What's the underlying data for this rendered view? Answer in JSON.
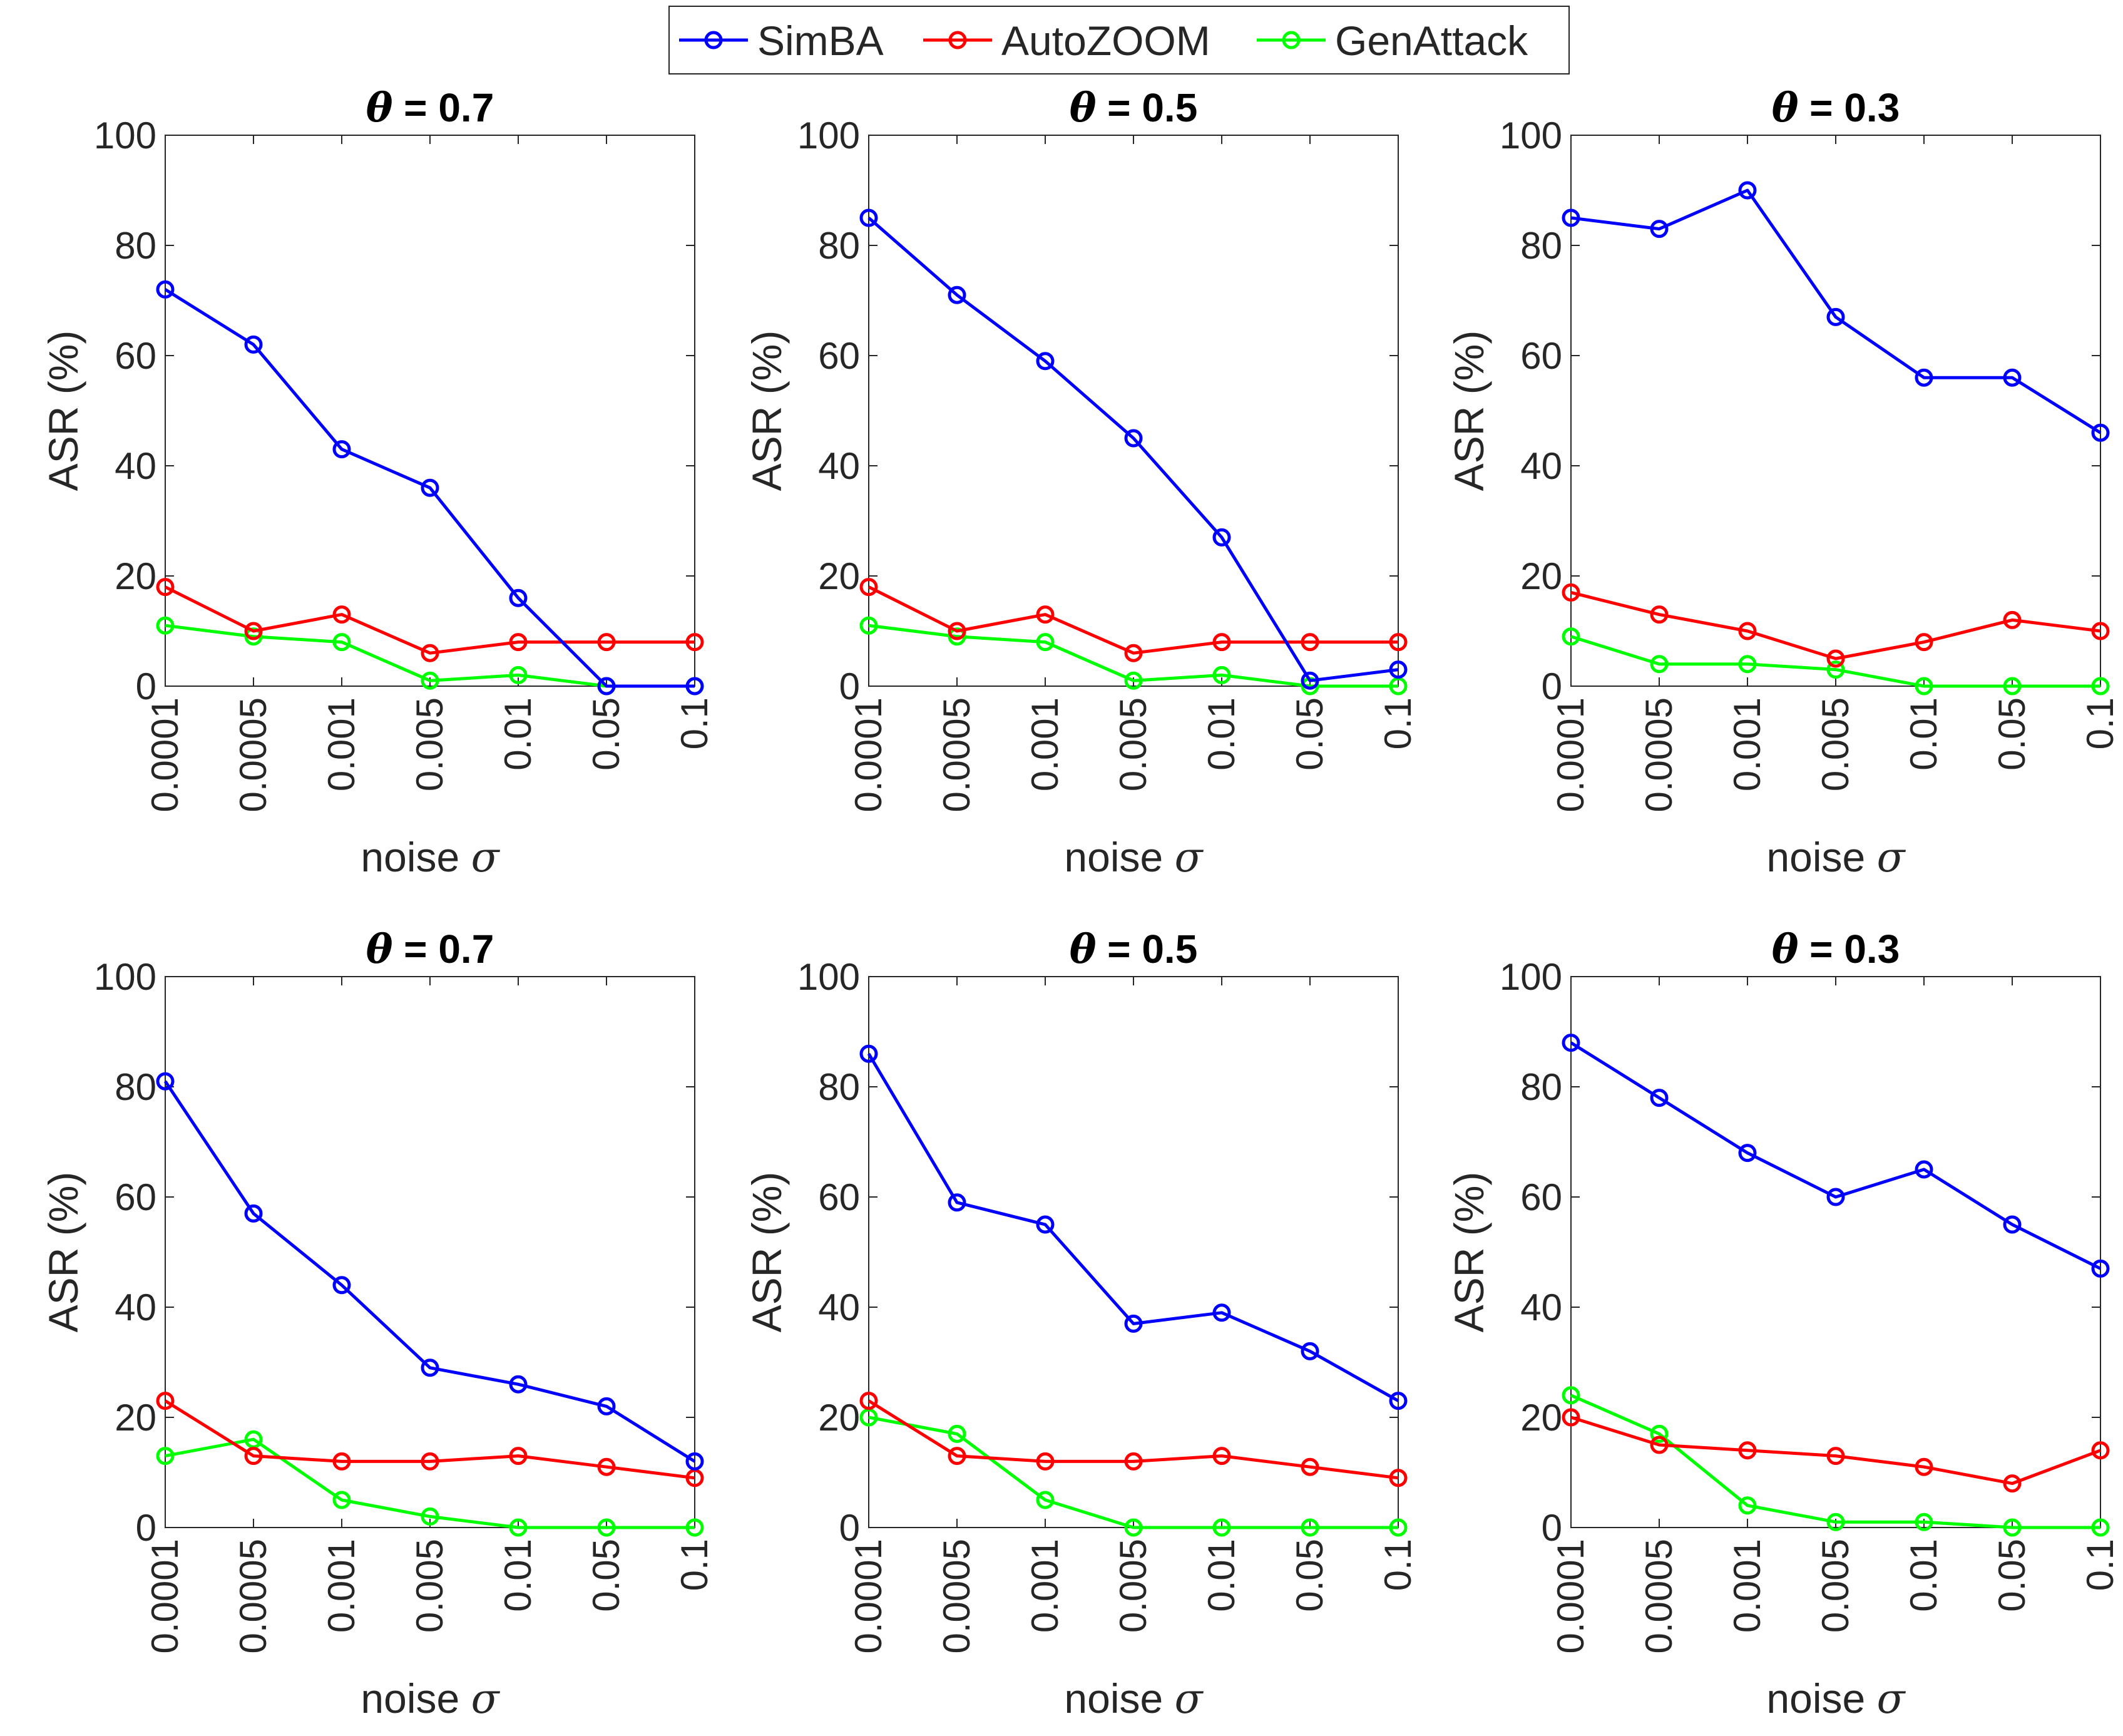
{
  "legend": {
    "entries": [
      {
        "label": "SimBA",
        "color": "#0000ff"
      },
      {
        "label": "AutoZOOM",
        "color": "#ff0000"
      },
      {
        "label": "GenAttack",
        "color": "#00ff00"
      }
    ]
  },
  "chart_data": [
    {
      "type": "line",
      "title": "θ = 0.7",
      "xlabel": "noise σ",
      "ylabel": "ASR (%)",
      "categories": [
        "0.0001",
        "0.0005",
        "0.001",
        "0.005",
        "0.01",
        "0.05",
        "0.1"
      ],
      "ylim": [
        0,
        100
      ],
      "yticks": [
        "0",
        "20",
        "40",
        "60",
        "80",
        "100"
      ],
      "series": [
        {
          "name": "SimBA",
          "color": "#0000ff",
          "values": [
            72,
            62,
            43,
            36,
            16,
            0,
            0
          ]
        },
        {
          "name": "AutoZOOM",
          "color": "#ff0000",
          "values": [
            18,
            10,
            13,
            6,
            8,
            8,
            8
          ]
        },
        {
          "name": "GenAttack",
          "color": "#00ff00",
          "values": [
            11,
            9,
            8,
            1,
            2,
            0,
            0
          ]
        }
      ]
    },
    {
      "type": "line",
      "title": "θ = 0.5",
      "xlabel": "noise σ",
      "ylabel": "ASR (%)",
      "categories": [
        "0.0001",
        "0.0005",
        "0.001",
        "0.005",
        "0.01",
        "0.05",
        "0.1"
      ],
      "ylim": [
        0,
        100
      ],
      "yticks": [
        "0",
        "20",
        "40",
        "60",
        "80",
        "100"
      ],
      "series": [
        {
          "name": "SimBA",
          "color": "#0000ff",
          "values": [
            85,
            71,
            59,
            45,
            27,
            1,
            3
          ]
        },
        {
          "name": "AutoZOOM",
          "color": "#ff0000",
          "values": [
            18,
            10,
            13,
            6,
            8,
            8,
            8
          ]
        },
        {
          "name": "GenAttack",
          "color": "#00ff00",
          "values": [
            11,
            9,
            8,
            1,
            2,
            0,
            0
          ]
        }
      ]
    },
    {
      "type": "line",
      "title": "θ = 0.3",
      "xlabel": "noise σ",
      "ylabel": "ASR (%)",
      "categories": [
        "0.0001",
        "0.0005",
        "0.001",
        "0.005",
        "0.01",
        "0.05",
        "0.1"
      ],
      "ylim": [
        0,
        100
      ],
      "yticks": [
        "0",
        "20",
        "40",
        "60",
        "80",
        "100"
      ],
      "series": [
        {
          "name": "SimBA",
          "color": "#0000ff",
          "values": [
            85,
            83,
            90,
            67,
            56,
            56,
            46
          ]
        },
        {
          "name": "AutoZOOM",
          "color": "#ff0000",
          "values": [
            17,
            13,
            10,
            5,
            8,
            12,
            10
          ]
        },
        {
          "name": "GenAttack",
          "color": "#00ff00",
          "values": [
            9,
            4,
            4,
            3,
            0,
            0,
            0
          ]
        }
      ]
    },
    {
      "type": "line",
      "title": "θ = 0.7",
      "xlabel": "noise σ",
      "ylabel": "ASR (%)",
      "categories": [
        "0.0001",
        "0.0005",
        "0.001",
        "0.005",
        "0.01",
        "0.05",
        "0.1"
      ],
      "ylim": [
        0,
        100
      ],
      "yticks": [
        "0",
        "20",
        "40",
        "60",
        "80",
        "100"
      ],
      "series": [
        {
          "name": "SimBA",
          "color": "#0000ff",
          "values": [
            81,
            57,
            44,
            29,
            26,
            22,
            12
          ]
        },
        {
          "name": "AutoZOOM",
          "color": "#ff0000",
          "values": [
            23,
            13,
            12,
            12,
            13,
            11,
            9
          ]
        },
        {
          "name": "GenAttack",
          "color": "#00ff00",
          "values": [
            13,
            16,
            5,
            2,
            0,
            0,
            0
          ]
        }
      ]
    },
    {
      "type": "line",
      "title": "θ = 0.5",
      "xlabel": "noise σ",
      "ylabel": "ASR (%)",
      "categories": [
        "0.0001",
        "0.0005",
        "0.001",
        "0.005",
        "0.01",
        "0.05",
        "0.1"
      ],
      "ylim": [
        0,
        100
      ],
      "yticks": [
        "0",
        "20",
        "40",
        "60",
        "80",
        "100"
      ],
      "series": [
        {
          "name": "SimBA",
          "color": "#0000ff",
          "values": [
            86,
            59,
            55,
            37,
            39,
            32,
            23
          ]
        },
        {
          "name": "AutoZOOM",
          "color": "#ff0000",
          "values": [
            23,
            13,
            12,
            12,
            13,
            11,
            9
          ]
        },
        {
          "name": "GenAttack",
          "color": "#00ff00",
          "values": [
            20,
            17,
            5,
            0,
            0,
            0,
            0
          ]
        }
      ]
    },
    {
      "type": "line",
      "title": "θ = 0.3",
      "xlabel": "noise σ",
      "ylabel": "ASR (%)",
      "categories": [
        "0.0001",
        "0.0005",
        "0.001",
        "0.005",
        "0.01",
        "0.05",
        "0.1"
      ],
      "ylim": [
        0,
        100
      ],
      "yticks": [
        "0",
        "20",
        "40",
        "60",
        "80",
        "100"
      ],
      "series": [
        {
          "name": "SimBA",
          "color": "#0000ff",
          "values": [
            88,
            78,
            68,
            60,
            65,
            55,
            47
          ]
        },
        {
          "name": "AutoZOOM",
          "color": "#ff0000",
          "values": [
            20,
            15,
            14,
            13,
            11,
            8,
            14
          ]
        },
        {
          "name": "GenAttack",
          "color": "#00ff00",
          "values": [
            24,
            17,
            4,
            1,
            1,
            0,
            0
          ]
        }
      ]
    }
  ]
}
